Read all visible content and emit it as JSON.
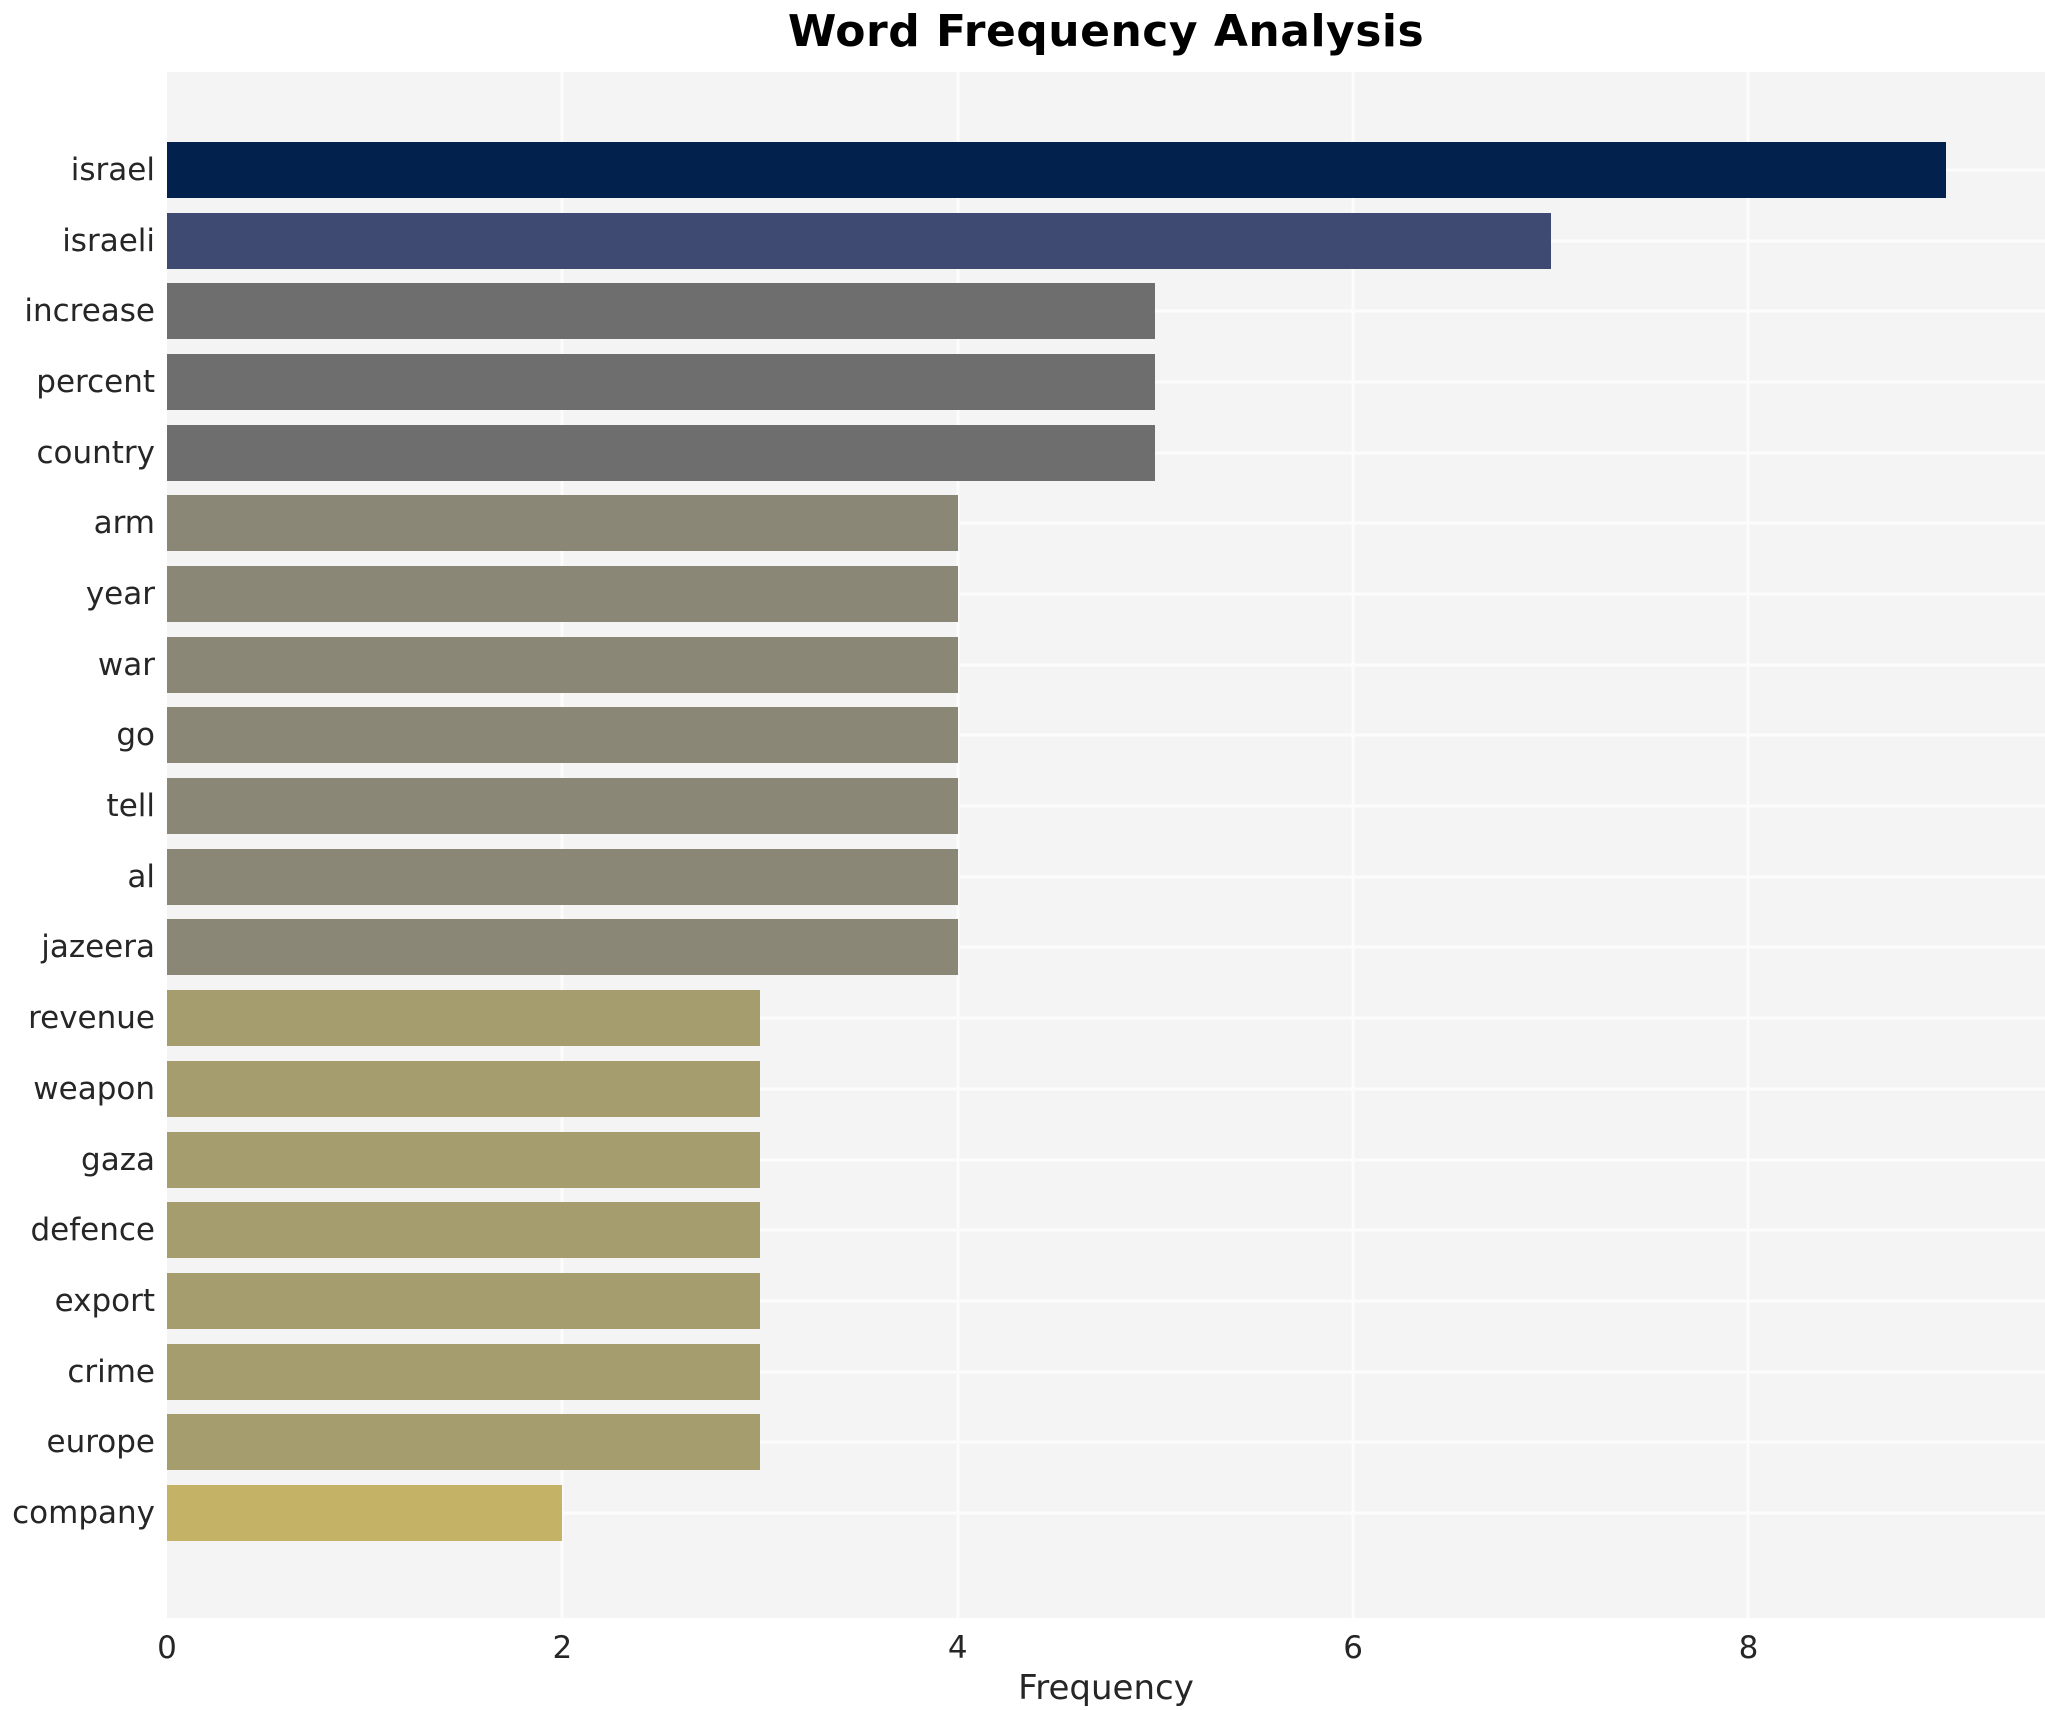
{
  "chart_data": {
    "type": "bar",
    "orientation": "horizontal",
    "title": "Word Frequency Analysis",
    "xlabel": "Frequency",
    "ylabel": "",
    "xlim": [
      0,
      9.5
    ],
    "xticks": [
      0,
      2,
      4,
      6,
      8
    ],
    "grid": true,
    "legend": "none",
    "categories": [
      "israel",
      "israeli",
      "increase",
      "percent",
      "country",
      "arm",
      "year",
      "war",
      "go",
      "tell",
      "al",
      "jazeera",
      "revenue",
      "weapon",
      "gaza",
      "defence",
      "export",
      "crime",
      "europe",
      "company"
    ],
    "values": [
      9,
      7,
      5,
      5,
      5,
      4,
      4,
      4,
      4,
      4,
      4,
      4,
      3,
      3,
      3,
      3,
      3,
      3,
      3,
      2
    ],
    "bar_colors": [
      "#02214d",
      "#3e4a71",
      "#6e6e6e",
      "#6e6e6e",
      "#6e6e6e",
      "#8a8776",
      "#8a8776",
      "#8a8776",
      "#8a8776",
      "#8a8776",
      "#8a8776",
      "#8a8776",
      "#a69d6e",
      "#a69d6e",
      "#a69d6e",
      "#a69d6e",
      "#a69d6e",
      "#a69d6e",
      "#a69d6e",
      "#c4b266"
    ],
    "colors": {
      "plot_background": "#f4f4f5",
      "gridline": "#fcfcfc",
      "figure_background": "#ffffff",
      "text": "#262626",
      "title_text": "#000000"
    }
  }
}
